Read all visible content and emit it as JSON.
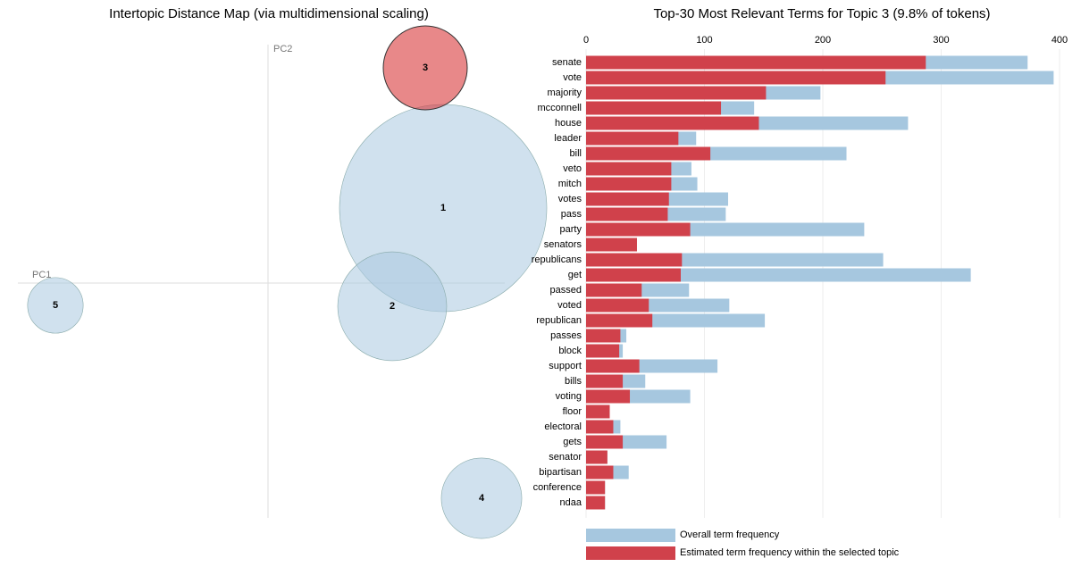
{
  "chart_data": [
    {
      "type": "bubble",
      "title": "Intertopic Distance Map (via multidimensional scaling)",
      "x_label": "PC1",
      "y_label": "PC2",
      "labels": [
        "1",
        "2",
        "3",
        "4",
        "5"
      ],
      "x": [
        0.196,
        0.139,
        0.176,
        0.239,
        -0.238
      ],
      "y": [
        0.084,
        -0.026,
        0.241,
        -0.241,
        -0.025
      ],
      "sizes": [
        59.7,
        16.5,
        9.8,
        9.0,
        4.3
      ],
      "colors": [
        "#aac8e0",
        "#aac8e0",
        "#d62728",
        "#aac8e0",
        "#aac8e0"
      ],
      "xlim": [
        -0.28,
        0.28
      ],
      "ylim": [
        -0.273,
        0.272
      ]
    },
    {
      "type": "hbar-overlay",
      "title": "Top-30 Most Relevant Terms for Topic 3 (9.8% of tokens)",
      "categories": [
        "senate",
        "vote",
        "majority",
        "mcconnell",
        "house",
        "leader",
        "bill",
        "veto",
        "mitch",
        "votes",
        "pass",
        "party",
        "senators",
        "republicans",
        "get",
        "passed",
        "voted",
        "republican",
        "passes",
        "block",
        "support",
        "bills",
        "voting",
        "floor",
        "electoral",
        "gets",
        "senator",
        "bipartisan",
        "conference",
        "ndaa"
      ],
      "series": [
        {
          "name": "Overall term frequency",
          "color": "#a6c7df",
          "values": [
            373,
            395,
            198,
            142,
            272,
            93,
            220,
            89,
            94,
            120,
            118,
            235,
            43,
            251,
            325,
            87,
            121,
            151,
            34,
            31,
            111,
            50,
            88,
            20,
            29,
            68,
            18,
            36,
            16,
            16
          ]
        },
        {
          "name": "Estimated term frequency within the selected topic",
          "color": "#d0414b",
          "values": [
            287,
            253,
            152,
            114,
            146,
            78,
            105,
            72,
            72,
            70,
            69,
            88,
            43,
            81,
            80,
            47,
            53,
            56,
            29,
            28,
            45,
            31,
            37,
            20,
            23,
            31,
            18,
            23,
            16,
            16
          ]
        }
      ],
      "xlim": [
        0,
        400
      ],
      "xticks": [
        0,
        100,
        200,
        300,
        400
      ],
      "grid": true
    }
  ]
}
